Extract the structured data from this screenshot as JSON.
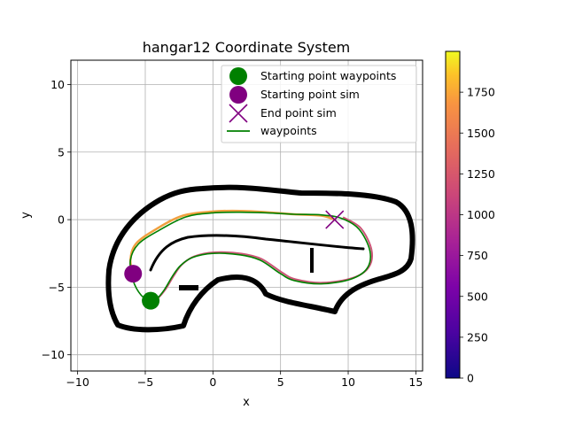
{
  "chart_data": {
    "type": "line",
    "title": "hangar12 Coordinate System",
    "xlabel": "x",
    "ylabel": "y",
    "xlim": [
      -10.5,
      15.5
    ],
    "ylim": [
      -11.2,
      11.8
    ],
    "x_ticks": [
      -10,
      -5,
      0,
      5,
      10,
      15
    ],
    "y_ticks": [
      -10,
      -5,
      0,
      5,
      10
    ],
    "x_tick_labels": [
      "−10",
      "−5",
      "0",
      "5",
      "10",
      "15"
    ],
    "y_tick_labels": [
      "−10",
      "−5",
      "0",
      "5",
      "10"
    ],
    "grid": true,
    "legend_position": "top-right",
    "legend": [
      {
        "label": "Starting point waypoints",
        "marker": "circle",
        "color": "#008000"
      },
      {
        "label": "Starting point sim",
        "marker": "circle",
        "color": "#800080"
      },
      {
        "label": "End point sim",
        "marker": "x",
        "color": "#800080"
      },
      {
        "label": "waypoints",
        "marker": "line",
        "color": "#008000"
      }
    ],
    "colorbar": {
      "colormap": "plasma",
      "range": [
        0,
        2000
      ],
      "ticks": [
        0,
        250,
        500,
        750,
        1000,
        1250,
        1500,
        1750
      ],
      "tick_labels": [
        "0",
        "250",
        "500",
        "750",
        "1000",
        "1250",
        "1500",
        "1750"
      ]
    },
    "starting_point_waypoints": {
      "x": -4.6,
      "y": -6.0
    },
    "starting_point_sim": {
      "x": -5.9,
      "y": -4.0
    },
    "end_point_sim": {
      "x": 9.0,
      "y": 0.0
    },
    "waypoints": {
      "x": [
        -4.6,
        -5.3,
        -5.9,
        -6.1,
        -5.5,
        -4.0,
        -2.0,
        0.0,
        2.0,
        4.0,
        6.0,
        8.0,
        9.5,
        10.8,
        11.6,
        11.4,
        10.2,
        8.0,
        6.0,
        5.0,
        3.5,
        2.0,
        0.0,
        -1.5,
        -2.4,
        -3.0,
        -3.6,
        -4.2,
        -4.6
      ],
      "y": [
        -6.0,
        -5.6,
        -4.5,
        -3.0,
        -1.8,
        -0.8,
        0.2,
        0.5,
        0.55,
        0.5,
        0.4,
        0.35,
        0.1,
        -0.7,
        -2.3,
        -3.6,
        -4.4,
        -4.75,
        -4.5,
        -4.0,
        -3.0,
        -2.6,
        -2.5,
        -2.8,
        -3.4,
        -4.2,
        -5.2,
        -5.9,
        -6.0
      ]
    },
    "sim_trajectory": {
      "x": [
        -5.9,
        -6.1,
        -5.7,
        -4.2,
        -2.2,
        0.0,
        2.0,
        4.0,
        6.0,
        8.0,
        9.0
      ],
      "y": [
        -4.0,
        -3.0,
        -1.8,
        -0.7,
        0.3,
        0.6,
        0.65,
        0.55,
        0.4,
        0.3,
        0.0
      ],
      "color_values": [
        0,
        200,
        400,
        600,
        800,
        1000,
        1200,
        1400,
        1600,
        1800,
        2000
      ]
    }
  }
}
